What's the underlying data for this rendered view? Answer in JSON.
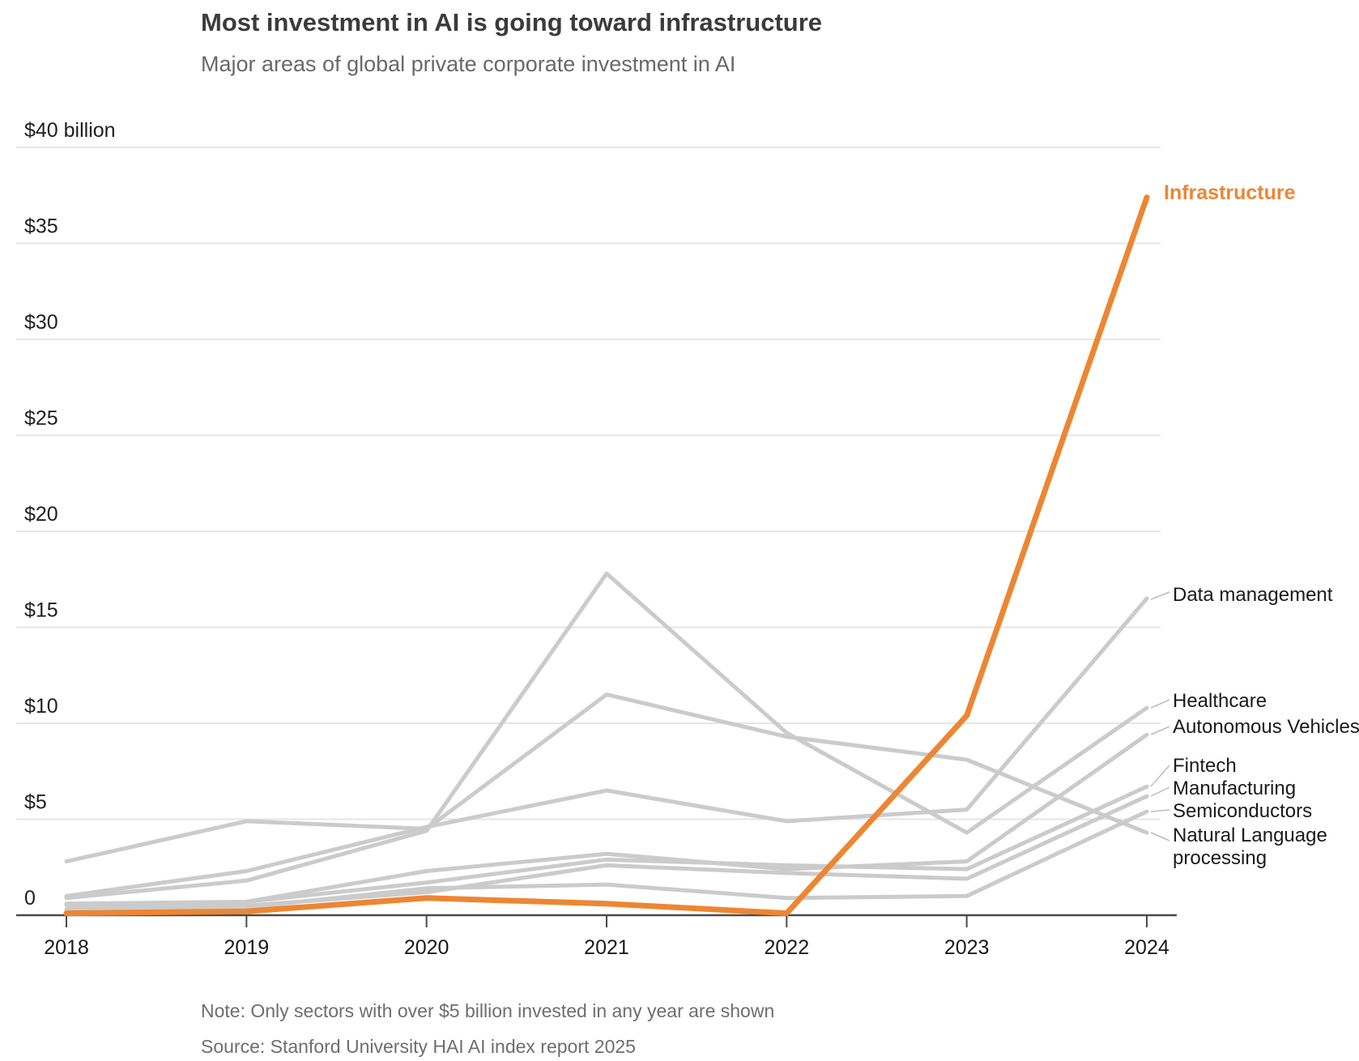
{
  "header": {
    "title": "Most investment in AI is going toward infrastructure",
    "subtitle": "Major areas of global private corporate investment in AI"
  },
  "footer": {
    "note": "Note: Only sectors with over $5 billion invested in any year are shown",
    "source": "Source: Stanford University HAI AI index report 2025"
  },
  "colors": {
    "accent_orange": "#ED8633",
    "series_gray": "#CBCBCB",
    "gridline": "#E6E6E6",
    "axis": "#4A4A4A",
    "leader": "#BDBDBD"
  },
  "chart_data": {
    "type": "line",
    "title": "Most investment in AI is going toward infrastructure",
    "subtitle": "Major areas of global private corporate investment in AI",
    "unit": "US$ billions",
    "x": [
      2018,
      2019,
      2020,
      2021,
      2022,
      2023,
      2024
    ],
    "x_labels": [
      "2018",
      "2019",
      "2020",
      "2021",
      "2022",
      "2023",
      "2024"
    ],
    "ylim": [
      0,
      40
    ],
    "grid": true,
    "legend_position": "right-end-labels",
    "y_ticks": [
      {
        "value": 40,
        "label": "$40 billion"
      },
      {
        "value": 35,
        "label": "$35"
      },
      {
        "value": 30,
        "label": "$30"
      },
      {
        "value": 25,
        "label": "$25"
      },
      {
        "value": 20,
        "label": "$20"
      },
      {
        "value": 15,
        "label": "$15"
      },
      {
        "value": 10,
        "label": "$10"
      },
      {
        "value": 5,
        "label": "$5"
      },
      {
        "value": 0,
        "label": "0"
      }
    ],
    "series": [
      {
        "name": "Data management",
        "emphasis": false,
        "values": [
          1.0,
          2.3,
          4.6,
          6.5,
          4.9,
          5.5,
          16.5
        ]
      },
      {
        "name": "Healthcare",
        "emphasis": false,
        "values": [
          0.9,
          1.8,
          4.4,
          17.8,
          9.5,
          4.3,
          10.8
        ]
      },
      {
        "name": "Autonomous Vehicles",
        "emphasis": false,
        "values": [
          0.5,
          0.7,
          2.3,
          3.2,
          2.4,
          2.8,
          9.4
        ]
      },
      {
        "name": "Fintech",
        "emphasis": false,
        "values": [
          0.6,
          0.7,
          1.7,
          2.9,
          2.6,
          2.4,
          6.7
        ]
      },
      {
        "name": "Manufacturing",
        "emphasis": false,
        "values": [
          0.3,
          0.5,
          1.2,
          2.6,
          2.2,
          1.9,
          6.2
        ]
      },
      {
        "name": "Semiconductors",
        "emphasis": false,
        "values": [
          0.2,
          0.4,
          1.4,
          1.6,
          0.9,
          1.0,
          5.4
        ]
      },
      {
        "name": "Natural Language processing",
        "emphasis": false,
        "values": [
          2.8,
          4.9,
          4.5,
          11.5,
          9.3,
          8.1,
          4.3
        ]
      },
      {
        "name": "Infrastructure",
        "emphasis": true,
        "values": [
          0.1,
          0.2,
          0.9,
          0.6,
          0.1,
          10.4,
          37.4
        ]
      }
    ]
  }
}
